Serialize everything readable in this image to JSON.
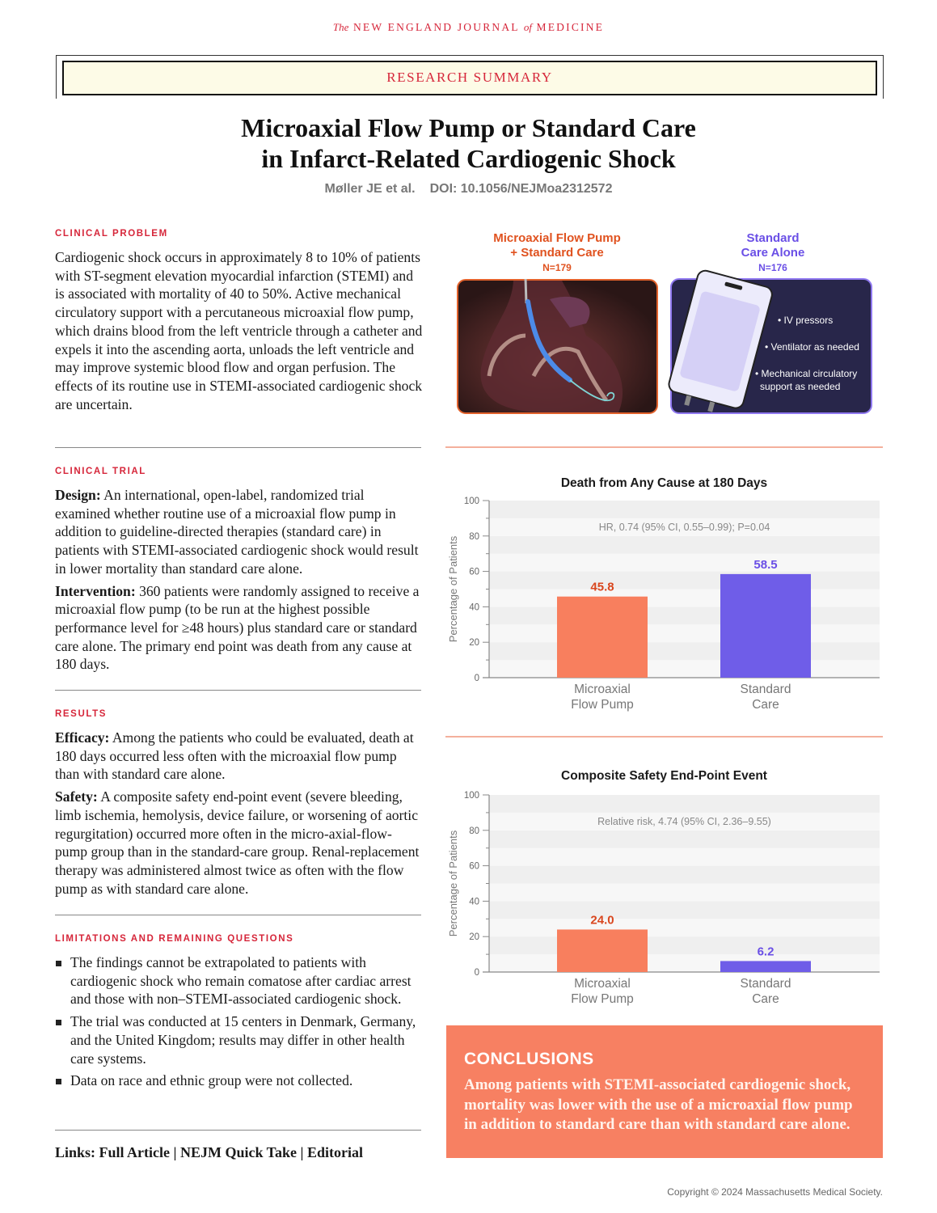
{
  "journal": {
    "the": "The",
    "name": "NEW ENGLAND JOURNAL",
    "of": "of",
    "medicine": "MEDICINE"
  },
  "banner": "RESEARCH SUMMARY",
  "title_line1": "Microaxial Flow Pump or Standard Care",
  "title_line2": "in Infarct-Related Cardiogenic Shock",
  "authors": "Møller JE et al.",
  "doi": "DOI: 10.1056/NEJMoa2312572",
  "clinical_problem": {
    "heading": "Clinical Problem",
    "text": "Cardiogenic shock occurs in approximately 8 to 10% of patients with ST-segment elevation myocardial infarction (STEMI) and is associated with mortality of 40 to 50%. Active mechanical circulatory support with a percutaneous microaxial flow pump, which drains blood from the left ventricle through a catheter and expels it into the ascending aorta, unloads the left ventricle and may improve systemic blood flow and organ perfusion. The effects of its routine use in STEMI-associated cardiogenic shock are uncertain."
  },
  "clinical_trial": {
    "heading": "Clinical Trial",
    "design_label": "Design:",
    "design": " An international, open-label, randomized trial examined whether routine use of a microaxial flow pump in addition to guideline-directed therapies (standard care) in patients with STEMI-associated cardiogenic shock would result in lower mortality than standard care alone.",
    "intervention_label": "Intervention:",
    "intervention": " 360 patients were randomly assigned to receive a microaxial flow pump (to be run at the highest possible performance level for ≥48 hours) plus standard care or standard care alone. The primary end point was death from any cause at 180 days."
  },
  "results": {
    "heading": "Results",
    "efficacy_label": "Efficacy:",
    "efficacy": " Among the patients who could be evaluated, death at 180 days occurred less often with the microaxial flow pump than with standard care alone.",
    "safety_label": "Safety:",
    "safety": " A composite safety end-point event (severe bleeding, limb ischemia, hemolysis, device failure, or worsening of aortic regurgitation) occurred more often in the micro-axial-flow-pump group than in the standard-care group. Renal-replacement therapy was administered almost twice as often with the flow pump as with standard care alone."
  },
  "limitations": {
    "heading": "Limitations and Remaining Questions",
    "items": [
      "The findings cannot be extrapolated to patients with cardiogenic shock who remain comatose after cardiac arrest and those with non–STEMI-associated cardiogenic shock.",
      "The trial was conducted at 15 centers in Denmark, Germany, and the United Kingdom; results may differ in other health care systems.",
      "Data on race and ethnic group were not collected."
    ]
  },
  "links": {
    "label": "Links:",
    "full_article": "Full Article",
    "quick_take": "NEJM Quick Take",
    "editorial": "Editorial",
    "sep": "|"
  },
  "arms": [
    {
      "line1": "Microaxial Flow Pump",
      "line2": "+ Standard Care",
      "n": "N=179",
      "color": "#e0521f"
    },
    {
      "line1": "Standard",
      "line2": "Care Alone",
      "n": "N=176",
      "color": "#6a4fe6",
      "bullets": [
        "IV pressors",
        "Ventilator as needed",
        "Mechanical circulatory",
        "support as needed"
      ]
    }
  ],
  "chart_data": [
    {
      "type": "bar",
      "title": "Death from Any Cause at 180 Days",
      "ylabel": "Percentage of Patients",
      "ylim": [
        0,
        100
      ],
      "yticks": [
        0,
        20,
        40,
        60,
        80,
        100
      ],
      "categories": [
        [
          "Microaxial",
          "Flow Pump"
        ],
        [
          "Standard",
          "Care"
        ]
      ],
      "values": [
        45.8,
        58.5
      ],
      "value_labels": [
        "45.8",
        "58.5"
      ],
      "colors": [
        "#f87f5e",
        "#6f5de8"
      ],
      "label_colors": [
        "#d9461e",
        "#6a4fe6"
      ],
      "annotation": "HR, 0.74 (95% CI, 0.55–0.99); P=0.04",
      "grid": "alternating bands"
    },
    {
      "type": "bar",
      "title": "Composite Safety End-Point Event",
      "ylabel": "Percentage of Patients",
      "ylim": [
        0,
        100
      ],
      "yticks": [
        0,
        20,
        40,
        60,
        80,
        100
      ],
      "categories": [
        [
          "Microaxial",
          "Flow Pump"
        ],
        [
          "Standard",
          "Care"
        ]
      ],
      "values": [
        24.0,
        6.2
      ],
      "value_labels": [
        "24.0",
        "6.2"
      ],
      "colors": [
        "#f87f5e",
        "#6f5de8"
      ],
      "label_colors": [
        "#d9461e",
        "#6a4fe6"
      ],
      "annotation": "Relative risk, 4.74 (95% CI, 2.36–9.55)",
      "grid": "alternating bands"
    }
  ],
  "conclusions": {
    "heading": "CONCLUSIONS",
    "text": "Among patients with STEMI-associated cardiogenic shock, mortality was lower with the use of a microaxial flow pump in addition to standard care than with standard care alone."
  },
  "copyright": "Copyright © 2024 Massachusetts Medical Society."
}
